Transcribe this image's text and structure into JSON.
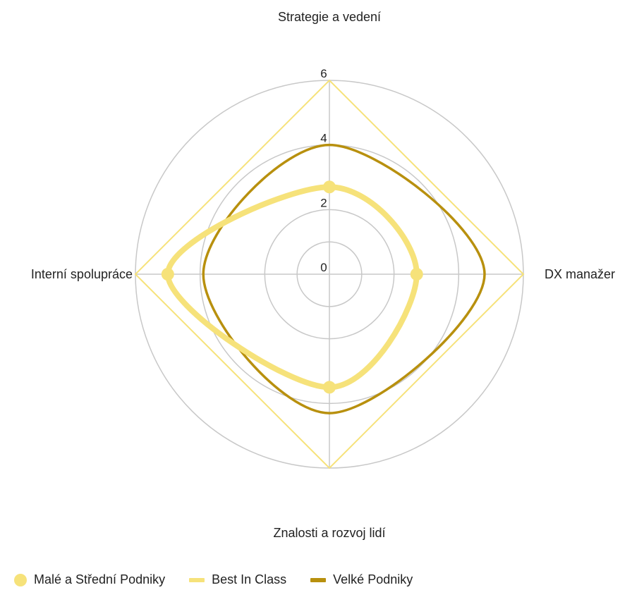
{
  "chart_data": {
    "type": "radar",
    "title": "",
    "axes": [
      "Strategie a vedení",
      "DX manažer",
      "Znalosti a rozvoj lidí",
      "Interní spolupráce"
    ],
    "rlim": [
      0,
      6
    ],
    "ticks": [
      0,
      2,
      4,
      6
    ],
    "grid": true,
    "legend_position": "bottom-left",
    "series": [
      {
        "name": "Malé a Střední Podniky",
        "values": [
          2.7,
          2.7,
          3.5,
          5.0
        ],
        "color": "#F6E27A",
        "style": "thick-with-points"
      },
      {
        "name": "Best In Class",
        "values": [
          6,
          6,
          6,
          6
        ],
        "color": "#F6E27A",
        "style": "thin-line"
      },
      {
        "name": "Velké Podniky",
        "values": [
          4.0,
          4.8,
          4.3,
          3.9
        ],
        "color": "#B8900E",
        "style": "line"
      }
    ]
  },
  "legend": {
    "items": [
      {
        "label": "Malé a Střední Podniky"
      },
      {
        "label": "Best In Class"
      },
      {
        "label": "Velké Podniky"
      }
    ]
  }
}
